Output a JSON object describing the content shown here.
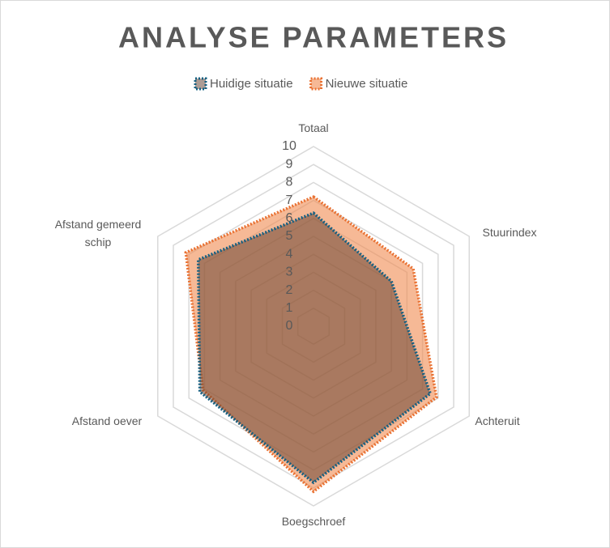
{
  "chart_data": {
    "type": "radar",
    "title": "ANALYSE PARAMETERS",
    "categories": [
      "Totaal",
      "Stuurindex",
      "Achteruit",
      "Boegschroef",
      "Afstand oever",
      "Afstand gemeerd schip"
    ],
    "series": [
      {
        "name": "Huidige situatie",
        "color": "#156082",
        "values": [
          6.3,
          5.0,
          7.5,
          8.7,
          7.3,
          7.4
        ]
      },
      {
        "name": "Nieuwe situatie",
        "color": "#e97132",
        "values": [
          7.2,
          6.4,
          7.9,
          9.2,
          7.1,
          8.2
        ]
      }
    ],
    "ylim": [
      0,
      10
    ],
    "yticks": [
      0,
      1,
      2,
      3,
      4,
      5,
      6,
      7,
      8,
      9,
      10
    ],
    "grid": true,
    "legend": "top"
  }
}
